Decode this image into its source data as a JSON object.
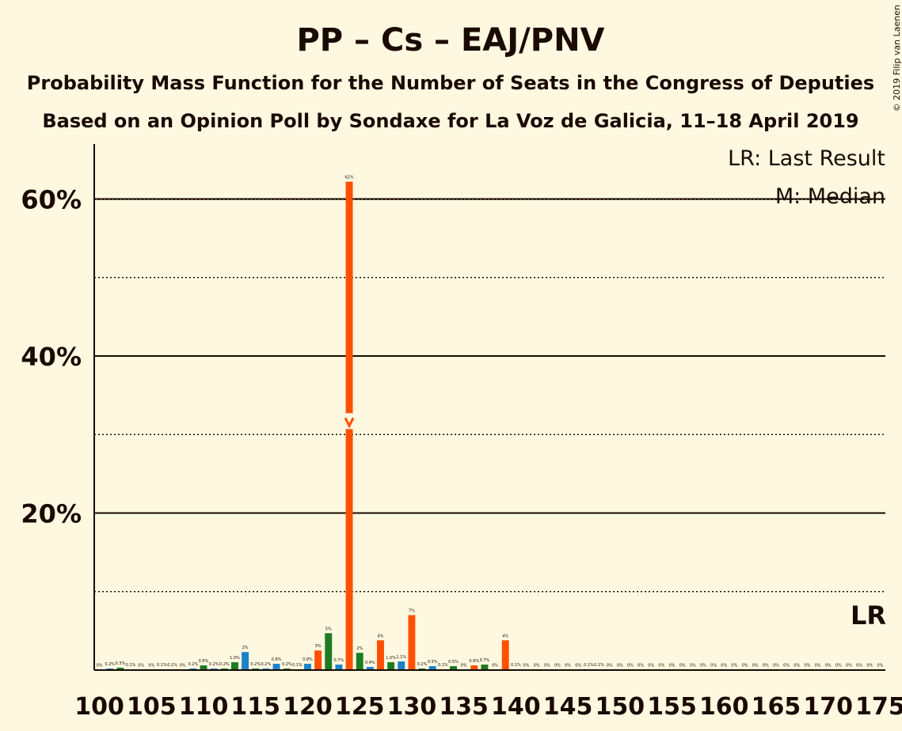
{
  "chart_data": {
    "type": "bar",
    "title": "PP – Cs – EAJ/PNV",
    "subtitle": "Probability Mass Function for the Number of Seats in the Congress of Deputies",
    "subtitle2": "Based on an Opinion Poll by Sondaxe for La Voz de Galicia, 11–18 April 2019",
    "copyright": "© 2019 Filip van Laenen",
    "legend": {
      "last_result": "LR: Last Result",
      "median": "M: Median"
    },
    "last_result_marker": "LR",
    "median_marker": "M",
    "median_seat": 124,
    "last_result_seat": 175,
    "ylim": [
      0,
      67
    ],
    "yticks": [
      {
        "value": 20,
        "label": "20%"
      },
      {
        "value": 40,
        "label": "40%"
      },
      {
        "value": 60,
        "label": "60%"
      }
    ],
    "minor_gridlines": [
      10,
      30,
      50
    ],
    "x_range": [
      100,
      175
    ],
    "xticks": [
      "100",
      "105",
      "110",
      "115",
      "120",
      "125",
      "130",
      "135",
      "140",
      "145",
      "150",
      "155",
      "160",
      "165",
      "170",
      "175"
    ],
    "colors": {
      "orange": "#FF5000",
      "green": "#1E7B22",
      "blue": "#1A82C8",
      "text": "#1a0a00",
      "background": "#FFF8E1"
    },
    "bars": [
      {
        "seat": 100,
        "value": 0.05,
        "label": "0%",
        "color": "green"
      },
      {
        "seat": 101,
        "value": 0.2,
        "label": "0.2%",
        "color": "blue"
      },
      {
        "seat": 102,
        "value": 0.3,
        "label": "0.3%",
        "color": "green"
      },
      {
        "seat": 103,
        "value": 0.1,
        "label": "0.1%",
        "color": "blue"
      },
      {
        "seat": 104,
        "value": 0.05,
        "label": "0%",
        "color": "green"
      },
      {
        "seat": 105,
        "value": 0.05,
        "label": "0%",
        "color": "blue"
      },
      {
        "seat": 106,
        "value": 0.1,
        "label": "0.1%",
        "color": "green"
      },
      {
        "seat": 107,
        "value": 0.1,
        "label": "0.1%",
        "color": "blue"
      },
      {
        "seat": 108,
        "value": 0.05,
        "label": "0%",
        "color": "green"
      },
      {
        "seat": 109,
        "value": 0.2,
        "label": "0.2%",
        "color": "blue"
      },
      {
        "seat": 110,
        "value": 0.6,
        "label": "0.6%",
        "color": "green"
      },
      {
        "seat": 111,
        "value": 0.2,
        "label": "0.2%",
        "color": "blue"
      },
      {
        "seat": 112,
        "value": 0.2,
        "label": "0.2%",
        "color": "green"
      },
      {
        "seat": 113,
        "value": 1.0,
        "label": "1.0%",
        "color": "green"
      },
      {
        "seat": 114,
        "value": 2.3,
        "label": "2%",
        "color": "blue"
      },
      {
        "seat": 115,
        "value": 0.2,
        "label": "0.2%",
        "color": "green"
      },
      {
        "seat": 116,
        "value": 0.2,
        "label": "0.2%",
        "color": "blue"
      },
      {
        "seat": 117,
        "value": 0.8,
        "label": "0.8%",
        "color": "blue"
      },
      {
        "seat": 118,
        "value": 0.2,
        "label": "0.2%",
        "color": "green"
      },
      {
        "seat": 119,
        "value": 0.1,
        "label": "0.1%",
        "color": "blue"
      },
      {
        "seat": 120,
        "value": 0.8,
        "label": "0.8%",
        "color": "blue"
      },
      {
        "seat": 121,
        "value": 2.5,
        "label": "3%",
        "color": "orange"
      },
      {
        "seat": 122,
        "value": 4.7,
        "label": "5%",
        "color": "green"
      },
      {
        "seat": 123,
        "value": 0.7,
        "label": "0.7%",
        "color": "blue"
      },
      {
        "seat": 124,
        "value": 62.2,
        "label": "62%",
        "color": "orange"
      },
      {
        "seat": 125,
        "value": 2.2,
        "label": "2%",
        "color": "green"
      },
      {
        "seat": 126,
        "value": 0.4,
        "label": "0.4%",
        "color": "blue"
      },
      {
        "seat": 127,
        "value": 3.8,
        "label": "4%",
        "color": "orange"
      },
      {
        "seat": 128,
        "value": 1.0,
        "label": "1.0%",
        "color": "green"
      },
      {
        "seat": 129,
        "value": 1.1,
        "label": "1.1%",
        "color": "blue"
      },
      {
        "seat": 130,
        "value": 7.0,
        "label": "7%",
        "color": "orange"
      },
      {
        "seat": 131,
        "value": 0.2,
        "label": "0.2%",
        "color": "green"
      },
      {
        "seat": 132,
        "value": 0.5,
        "label": "0.5%",
        "color": "blue"
      },
      {
        "seat": 133,
        "value": 0.1,
        "label": "0.1%",
        "color": "green"
      },
      {
        "seat": 134,
        "value": 0.5,
        "label": "0.5%",
        "color": "green"
      },
      {
        "seat": 135,
        "value": 0.05,
        "label": "0%",
        "color": "blue"
      },
      {
        "seat": 136,
        "value": 0.6,
        "label": "0.6%",
        "color": "orange"
      },
      {
        "seat": 137,
        "value": 0.7,
        "label": "0.7%",
        "color": "green"
      },
      {
        "seat": 138,
        "value": 0.05,
        "label": "0%",
        "color": "blue"
      },
      {
        "seat": 139,
        "value": 3.8,
        "label": "4%",
        "color": "orange"
      },
      {
        "seat": 140,
        "value": 0.1,
        "label": "0.1%",
        "color": "green"
      },
      {
        "seat": 141,
        "value": 0.05,
        "label": "0%",
        "color": "blue"
      },
      {
        "seat": 142,
        "value": 0.05,
        "label": "0%",
        "color": "green"
      },
      {
        "seat": 143,
        "value": 0.05,
        "label": "0%",
        "color": "blue"
      },
      {
        "seat": 144,
        "value": 0.05,
        "label": "0%",
        "color": "green"
      },
      {
        "seat": 145,
        "value": 0.05,
        "label": "0%",
        "color": "blue"
      },
      {
        "seat": 146,
        "value": 0.05,
        "label": "0%",
        "color": "green"
      },
      {
        "seat": 147,
        "value": 0.1,
        "label": "0.1%",
        "color": "blue"
      },
      {
        "seat": 148,
        "value": 0.1,
        "label": "0.1%",
        "color": "green"
      },
      {
        "seat": 149,
        "value": 0.05,
        "label": "0%",
        "color": "blue"
      },
      {
        "seat": 150,
        "value": 0.05,
        "label": "0%",
        "color": "green"
      },
      {
        "seat": 151,
        "value": 0.05,
        "label": "0%",
        "color": "blue"
      },
      {
        "seat": 152,
        "value": 0.05,
        "label": "0%",
        "color": "green"
      },
      {
        "seat": 153,
        "value": 0.05,
        "label": "0%",
        "color": "blue"
      },
      {
        "seat": 154,
        "value": 0.05,
        "label": "0%",
        "color": "green"
      },
      {
        "seat": 155,
        "value": 0.05,
        "label": "0%",
        "color": "blue"
      },
      {
        "seat": 156,
        "value": 0.05,
        "label": "0%",
        "color": "green"
      },
      {
        "seat": 157,
        "value": 0.05,
        "label": "0%",
        "color": "blue"
      },
      {
        "seat": 158,
        "value": 0.05,
        "label": "0%",
        "color": "green"
      },
      {
        "seat": 159,
        "value": 0.05,
        "label": "0%",
        "color": "blue"
      },
      {
        "seat": 160,
        "value": 0.05,
        "label": "0%",
        "color": "green"
      },
      {
        "seat": 161,
        "value": 0.05,
        "label": "0%",
        "color": "blue"
      },
      {
        "seat": 162,
        "value": 0.05,
        "label": "0%",
        "color": "green"
      },
      {
        "seat": 163,
        "value": 0.05,
        "label": "0%",
        "color": "blue"
      },
      {
        "seat": 164,
        "value": 0.05,
        "label": "0%",
        "color": "green"
      },
      {
        "seat": 165,
        "value": 0.05,
        "label": "0%",
        "color": "blue"
      },
      {
        "seat": 166,
        "value": 0.05,
        "label": "0%",
        "color": "green"
      },
      {
        "seat": 167,
        "value": 0.05,
        "label": "0%",
        "color": "blue"
      },
      {
        "seat": 168,
        "value": 0.05,
        "label": "0%",
        "color": "green"
      },
      {
        "seat": 169,
        "value": 0.05,
        "label": "0%",
        "color": "blue"
      },
      {
        "seat": 170,
        "value": 0.05,
        "label": "0%",
        "color": "green"
      },
      {
        "seat": 171,
        "value": 0.05,
        "label": "0%",
        "color": "blue"
      },
      {
        "seat": 172,
        "value": 0.05,
        "label": "0%",
        "color": "green"
      },
      {
        "seat": 173,
        "value": 0.05,
        "label": "0%",
        "color": "blue"
      },
      {
        "seat": 174,
        "value": 0.05,
        "label": "0%",
        "color": "green"
      },
      {
        "seat": 175,
        "value": 0.05,
        "label": "0%",
        "color": "blue"
      }
    ]
  }
}
